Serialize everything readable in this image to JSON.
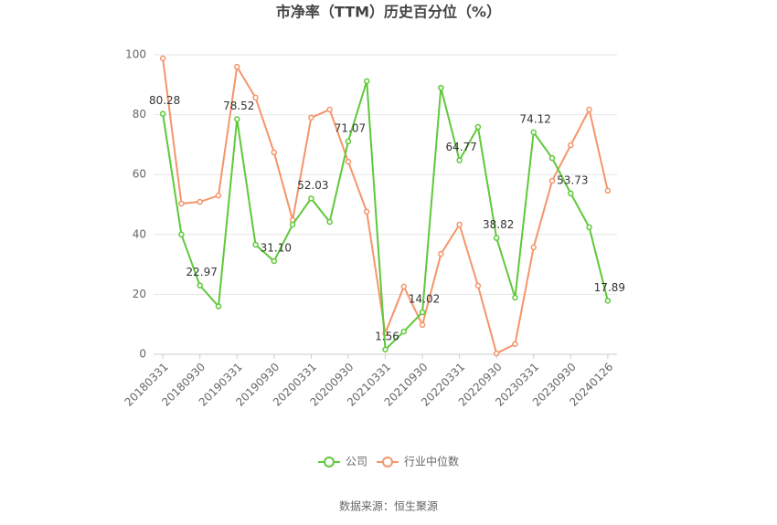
{
  "chart_data": {
    "type": "line",
    "title": "市净率（TTM）历史百分位（%）",
    "source": "数据来源：恒生聚源",
    "categories": [
      "20180331",
      null,
      "20180930",
      null,
      "20190331",
      null,
      "20190930",
      null,
      "20200331",
      null,
      "20200930",
      null,
      "20210331",
      null,
      "20210930",
      null,
      "20220331",
      null,
      "20220930",
      null,
      "20230331",
      null,
      "20230930",
      null,
      "20240126"
    ],
    "series": [
      {
        "name": "公司",
        "color": "#5ec93a",
        "values": [
          80.28,
          40,
          22.97,
          16,
          78.52,
          36.6,
          31.1,
          43.3,
          52.03,
          44.2,
          71.07,
          91.2,
          1.56,
          7.6,
          14.02,
          89,
          64.77,
          75.9,
          38.82,
          18.9,
          74.12,
          65.5,
          53.73,
          42.4,
          17.89
        ],
        "value_labels": [
          "80.28",
          null,
          "22.97",
          null,
          "78.52",
          null,
          "31.10",
          null,
          "52.03",
          null,
          "71.07",
          null,
          "1.56",
          null,
          "14.02",
          null,
          "64.77",
          null,
          "38.82",
          null,
          "74.12",
          null,
          "53.73",
          null,
          "17.89"
        ]
      },
      {
        "name": "行业中位数",
        "color": "#f4956a",
        "values": [
          98.8,
          50.3,
          50.9,
          53,
          96,
          85.7,
          67.4,
          44.8,
          79,
          81.7,
          64.3,
          47.6,
          7,
          22.6,
          9.8,
          33.5,
          43.3,
          22.9,
          0.3,
          3.4,
          35.7,
          57.9,
          69.8,
          81.7,
          54.6
        ]
      }
    ],
    "ylim": [
      0,
      100
    ],
    "yticks": [
      0,
      20,
      40,
      60,
      80,
      100
    ],
    "grid": true
  }
}
